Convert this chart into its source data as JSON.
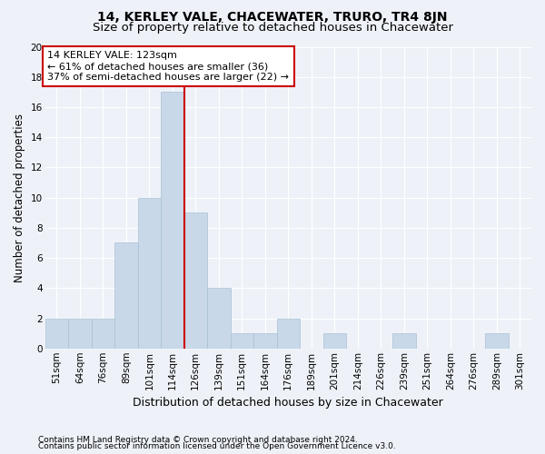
{
  "title1": "14, KERLEY VALE, CHACEWATER, TRURO, TR4 8JN",
  "title2": "Size of property relative to detached houses in Chacewater",
  "xlabel": "Distribution of detached houses by size in Chacewater",
  "ylabel": "Number of detached properties",
  "footnote1": "Contains HM Land Registry data © Crown copyright and database right 2024.",
  "footnote2": "Contains public sector information licensed under the Open Government Licence v3.0.",
  "bin_labels": [
    "51sqm",
    "64sqm",
    "76sqm",
    "89sqm",
    "101sqm",
    "114sqm",
    "126sqm",
    "139sqm",
    "151sqm",
    "164sqm",
    "176sqm",
    "189sqm",
    "201sqm",
    "214sqm",
    "226sqm",
    "239sqm",
    "251sqm",
    "264sqm",
    "276sqm",
    "289sqm",
    "301sqm"
  ],
  "bar_values": [
    2,
    2,
    2,
    7,
    10,
    17,
    9,
    4,
    1,
    1,
    2,
    0,
    1,
    0,
    0,
    1,
    0,
    0,
    0,
    1,
    0
  ],
  "bar_color": "#c8d8e8",
  "bar_edge_color": "#a8c0d4",
  "vline_index": 5.5,
  "annotation_text": "14 KERLEY VALE: 123sqm\n← 61% of detached houses are smaller (36)\n37% of semi-detached houses are larger (22) →",
  "annotation_box_color": "#ffffff",
  "annotation_box_edge": "#cc0000",
  "ylim": [
    0,
    20
  ],
  "yticks": [
    0,
    2,
    4,
    6,
    8,
    10,
    12,
    14,
    16,
    18,
    20
  ],
  "background_color": "#eef2f8",
  "plot_bg_color": "#eef2f8",
  "grid_color": "#ffffff",
  "title1_fontsize": 10,
  "title2_fontsize": 9.5,
  "ylabel_fontsize": 8.5,
  "xlabel_fontsize": 9,
  "tick_fontsize": 7.5,
  "annotation_fontsize": 8
}
